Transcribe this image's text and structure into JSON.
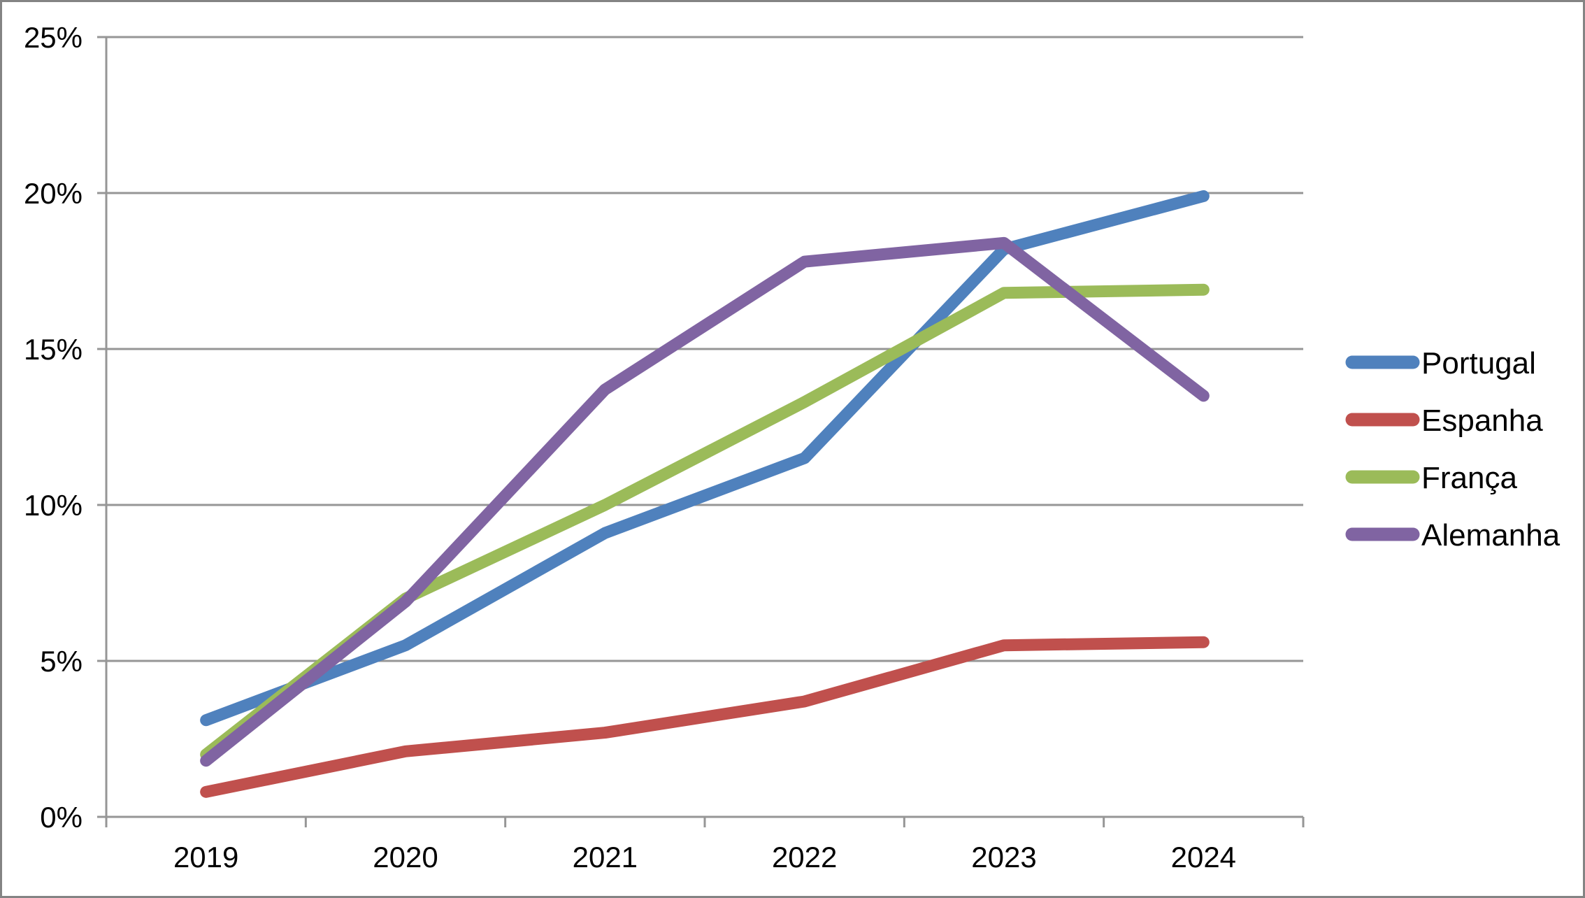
{
  "chart_data": {
    "type": "line",
    "title": "",
    "xlabel": "",
    "ylabel": "",
    "categories": [
      "2019",
      "2020",
      "2021",
      "2022",
      "2023",
      "2024"
    ],
    "series": [
      {
        "name": "Portugal",
        "color": "#4F81BD",
        "values": [
          3.1,
          5.5,
          9.1,
          11.5,
          18.2,
          19.9
        ]
      },
      {
        "name": "Espanha",
        "color": "#C0504D",
        "values": [
          0.8,
          2.1,
          2.7,
          3.7,
          5.5,
          5.6
        ]
      },
      {
        "name": "França",
        "color": "#9BBB59",
        "values": [
          2.0,
          7.0,
          10.0,
          13.3,
          16.8,
          16.9
        ]
      },
      {
        "name": "Alemanha",
        "color": "#8064A2",
        "values": [
          1.8,
          6.9,
          13.7,
          17.8,
          18.4,
          13.5
        ]
      }
    ],
    "ylim": [
      0,
      25
    ],
    "y_ticks": [
      "0%",
      "5%",
      "10%",
      "15%",
      "20%",
      "25%"
    ],
    "grid": true,
    "legend_position": "right"
  },
  "colors": {
    "gridline": "#969696",
    "axis": "#969696",
    "chart_border": "#848484",
    "text": "#000000",
    "background": "#FFFFFF"
  }
}
